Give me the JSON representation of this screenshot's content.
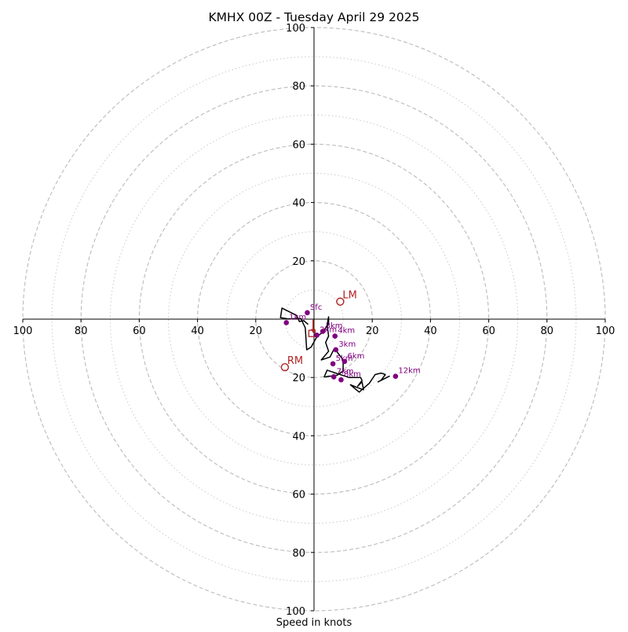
{
  "chart_data": {
    "type": "hodograph",
    "title": "KMHX 00Z - Tuesday April 29 2025",
    "xlabel": "Speed in knots",
    "units": "knots",
    "rings": {
      "major": [
        20,
        40,
        60,
        80,
        100
      ],
      "minor": [
        10,
        30,
        50,
        70,
        90
      ]
    },
    "axis_ticks": {
      "left": [
        "100",
        "80",
        "60",
        "40",
        "20"
      ],
      "right": [
        "20",
        "40",
        "60",
        "80",
        "100"
      ],
      "top": [
        "100",
        "80",
        "60",
        "40",
        "20"
      ],
      "bottom": [
        "20",
        "40",
        "60",
        "80",
        "100"
      ]
    },
    "tick_values": [
      20,
      40,
      60,
      80,
      100
    ],
    "lim": [
      -100,
      100
    ],
    "grid": true,
    "colors": {
      "trace": "#000000",
      "height_points": "#800080",
      "motion": "#b22222",
      "grid": "#bbbbbb",
      "axes": "#000000"
    },
    "trace": [
      [
        -2,
        -1.8
      ],
      [
        -3.5,
        -0.5
      ],
      [
        -5,
        -0.8
      ],
      [
        -6,
        1.3
      ],
      [
        -11,
        3.8
      ],
      [
        -11.5,
        0.5
      ],
      [
        -9,
        0.1
      ],
      [
        -4.5,
        0.2
      ],
      [
        -3,
        -3
      ],
      [
        -2.5,
        -10.5
      ],
      [
        -1,
        -9.6
      ],
      [
        1,
        -6
      ],
      [
        3,
        -4.5
      ],
      [
        5,
        -1.5
      ],
      [
        5,
        0.8
      ],
      [
        4.5,
        -2
      ],
      [
        5,
        -5.8
      ],
      [
        4,
        -8
      ],
      [
        5,
        -11
      ],
      [
        2.5,
        -14
      ],
      [
        5.5,
        -13
      ],
      [
        7,
        -10
      ],
      [
        10,
        -14
      ],
      [
        10,
        -17.8
      ],
      [
        8,
        -19.2
      ],
      [
        4,
        -19.8
      ],
      [
        3.5,
        -19.8
      ],
      [
        4.5,
        -17.5
      ],
      [
        12,
        -20
      ],
      [
        16,
        -20
      ],
      [
        16.5,
        -21
      ],
      [
        15,
        -23
      ],
      [
        16.5,
        -21.5
      ],
      [
        17,
        -24.2
      ],
      [
        15,
        -23.5
      ],
      [
        12.5,
        -22.5
      ],
      [
        15.5,
        -25
      ],
      [
        19,
        -22
      ],
      [
        21,
        -19
      ],
      [
        23,
        -18.5
      ],
      [
        24.5,
        -19
      ],
      [
        23,
        -21
      ],
      [
        22,
        -21.5
      ],
      [
        26,
        -19.5
      ]
    ],
    "height_points": [
      {
        "label": "Sfc",
        "u": -2.3,
        "v": 2.2
      },
      {
        "label": "1km",
        "u": -9.5,
        "v": -1.2
      },
      {
        "label": "2km",
        "u": 1.0,
        "v": -5.5
      },
      {
        "label": "3km",
        "u": 3.0,
        "v": -4.2
      },
      {
        "label": "4km",
        "u": 7.2,
        "v": -5.8
      },
      {
        "label": "3km",
        "u": 7.5,
        "v": -10.5
      },
      {
        "label": "5km",
        "u": 6.5,
        "v": -15.3
      },
      {
        "label": "6km",
        "u": 10.5,
        "v": -14.5
      },
      {
        "label": "7km",
        "u": 6.8,
        "v": -19.8
      },
      {
        "label": "8km",
        "u": 9.3,
        "v": -20.8
      },
      {
        "label": "12km",
        "u": 28.0,
        "v": -19.6
      }
    ],
    "storm_motion": [
      {
        "label": "LM",
        "u": 9.0,
        "v": 6.0
      },
      {
        "label": "RM",
        "u": -10.0,
        "v": -16.5
      }
    ],
    "mean_wind_marker": {
      "u": -0.7,
      "v": -4.9
    },
    "mean_wind_arrow": {
      "u0": -0.3,
      "v0": -0.2,
      "u1": -0.3,
      "v1": -4.2
    }
  }
}
